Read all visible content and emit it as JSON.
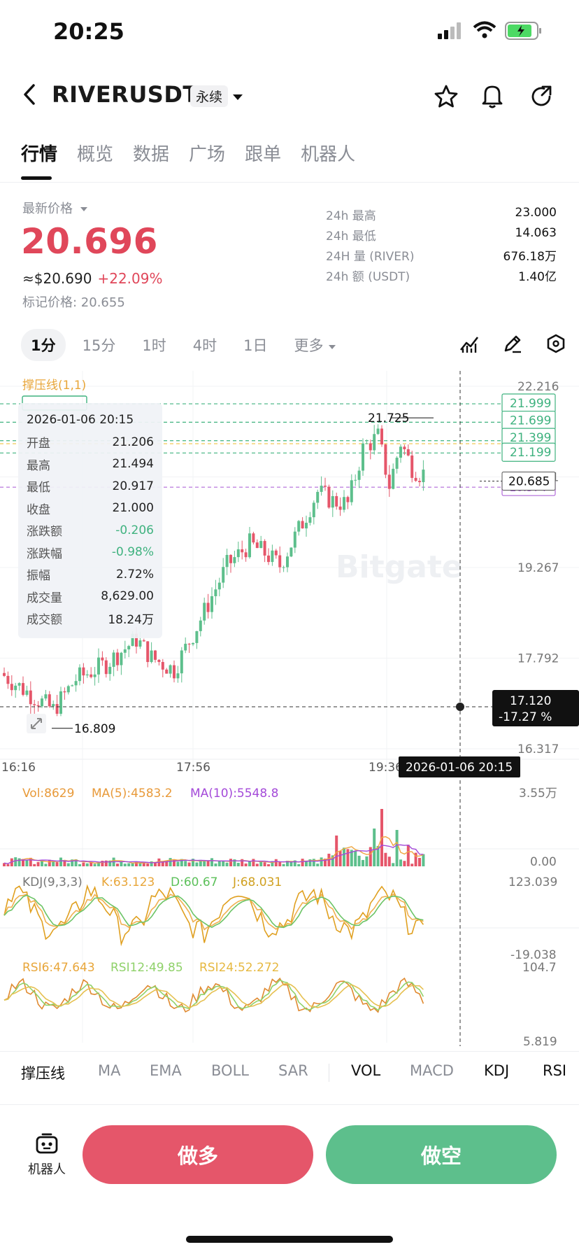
{
  "status_bar": {
    "time": "20:25"
  },
  "header": {
    "symbol": "RIVERUSDT",
    "contract_type": "永续"
  },
  "nav_tabs": [
    {
      "label": "行情",
      "active": true
    },
    {
      "label": "概览",
      "active": false
    },
    {
      "label": "数据",
      "active": false
    },
    {
      "label": "广场",
      "active": false
    },
    {
      "label": "跟单",
      "active": false
    },
    {
      "label": "机器人",
      "active": false
    }
  ],
  "price": {
    "label": "最新价格",
    "last": "20.696",
    "usd": "≈$20.690",
    "change_pct": "+22.09%",
    "mark_price": "标记价格: 20.655"
  },
  "stats_24h": [
    {
      "key": "24h  最高",
      "value": "23.000"
    },
    {
      "key": "24h  最低",
      "value": "14.063"
    },
    {
      "key": "24H  量 (RIVER)",
      "value": "676.18万"
    },
    {
      "key": "24h  额 (USDT)",
      "value": "1.40亿"
    }
  ],
  "timeframes": [
    {
      "label": "1分",
      "active": true
    },
    {
      "label": "15分",
      "active": false
    },
    {
      "label": "1时",
      "active": false
    },
    {
      "label": "4时",
      "active": false
    },
    {
      "label": "1日",
      "active": false
    },
    {
      "label": "更多",
      "active": false
    }
  ],
  "chart": {
    "indicator_label": "撑压线(1,1)",
    "y_ticks": [
      "22.216",
      "20.741",
      "19.267",
      "17.792",
      "16.317"
    ],
    "x_ticks": [
      "16:16",
      "17:56",
      "19:36"
    ],
    "crosshair_time": "2026-01-06 20:15",
    "crosshair_price": "17.120",
    "crosshair_pct": "-17.27 %",
    "current_price_tag": "20.685",
    "high_marker": "21.725",
    "low_marker": "16.809",
    "level_tags": [
      "21.999",
      "21.699",
      "21.399",
      "21.199"
    ],
    "hidden_level_tag": "20.574",
    "watermark": "Bitgate"
  },
  "ohlc_tooltip": {
    "date": "2026-01-06 20:15",
    "rows": [
      {
        "key": "开盘",
        "value": "21.206",
        "neg": false
      },
      {
        "key": "最高",
        "value": "21.494",
        "neg": false
      },
      {
        "key": "最低",
        "value": "20.917",
        "neg": false
      },
      {
        "key": "收盘",
        "value": "21.000",
        "neg": false
      },
      {
        "key": "涨跌额",
        "value": "-0.206",
        "neg": true
      },
      {
        "key": "涨跌幅",
        "value": "-0.98%",
        "neg": true
      },
      {
        "key": "振幅",
        "value": "2.72%",
        "neg": false
      },
      {
        "key": "成交量",
        "value": "8,629.00",
        "neg": false
      },
      {
        "key": "成交额",
        "value": "18.24万",
        "neg": false
      }
    ]
  },
  "volume_panel": {
    "vol": "Vol:8629",
    "ma5": "MA(5):4583.2",
    "ma10": "MA(10):5548.8",
    "top": "3.55万",
    "bottom": "0.00"
  },
  "kdj_panel": {
    "label": "KDJ(9,3,3)",
    "k": "K:63.123",
    "d": "D:60.67",
    "j": "J:68.031",
    "top": "123.039",
    "bottom": "-19.038"
  },
  "rsi_panel": {
    "rsi6": "RSI6:47.643",
    "rsi12": "RSI12:49.85",
    "rsi24": "RSI24:52.272",
    "top": "104.7",
    "bottom": "5.819"
  },
  "indicator_tabs": [
    {
      "label": "撑压线",
      "on": true
    },
    {
      "label": "MA",
      "on": false
    },
    {
      "label": "EMA",
      "on": false
    },
    {
      "label": "BOLL",
      "on": false
    },
    {
      "label": "SAR",
      "on": false
    },
    {
      "label": "VOL",
      "on": true
    },
    {
      "label": "MACD",
      "on": false
    },
    {
      "label": "KDJ",
      "on": true
    },
    {
      "label": "RSI",
      "on": true
    }
  ],
  "bottom_bar": {
    "robot_label": "机器人",
    "long_label": "做多",
    "short_label": "做空"
  },
  "colors": {
    "up": "#5dbf8c",
    "down": "#e5566a",
    "price_red": "#e0475a",
    "level": "#3fb27f",
    "ma5": "#f0a640",
    "ma10": "#a44ad9"
  }
}
